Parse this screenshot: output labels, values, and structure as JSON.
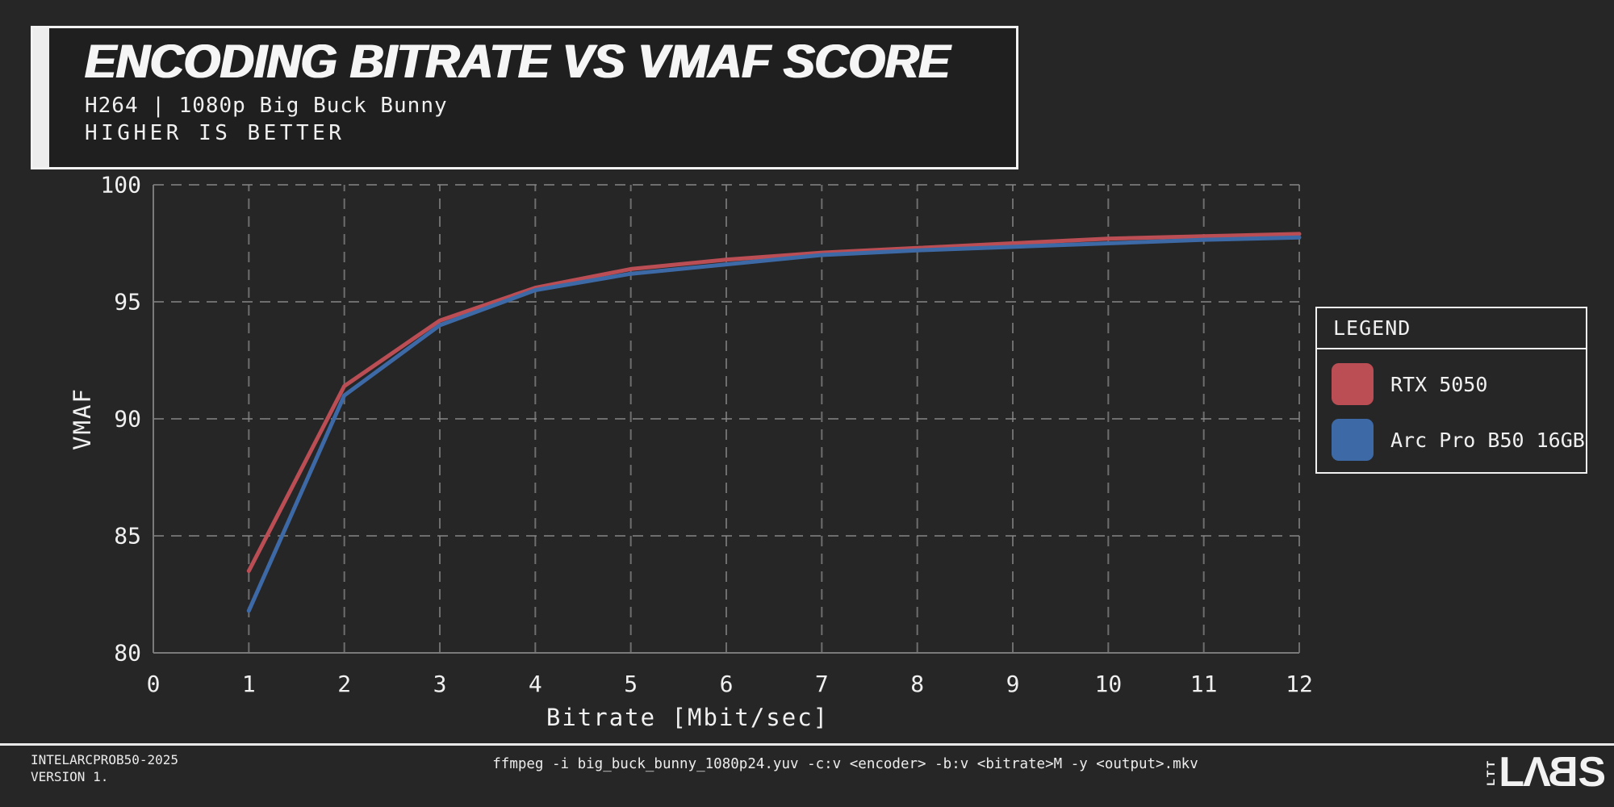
{
  "header": {
    "title": "ENCODING BITRATE VS VMAF SCORE",
    "subtitle": "H264 | 1080p Big Buck Bunny",
    "tagline": "HIGHER IS BETTER"
  },
  "chart_data": {
    "type": "line",
    "title": "Encoding Bitrate vs VMAF Score",
    "xlabel": "Bitrate [Mbit/sec]",
    "ylabel": "VMAF",
    "xlim": [
      0,
      12
    ],
    "ylim": [
      80,
      100
    ],
    "xticks": [
      0,
      1,
      2,
      3,
      4,
      5,
      6,
      7,
      8,
      9,
      10,
      11,
      12
    ],
    "yticks": [
      80,
      85,
      90,
      95,
      100
    ],
    "grid": "dashed",
    "legend_position": "right",
    "x": [
      1,
      2,
      3,
      4,
      5,
      6,
      7,
      8,
      9,
      10,
      11,
      12
    ],
    "series": [
      {
        "name": "RTX 5050",
        "color": "#bb4d54",
        "values": [
          83.5,
          91.4,
          94.2,
          95.6,
          96.4,
          96.8,
          97.1,
          97.3,
          97.5,
          97.7,
          97.8,
          97.9
        ]
      },
      {
        "name": "Arc Pro B50 16GB",
        "color": "#3d6aa6",
        "values": [
          81.8,
          91.0,
          94.0,
          95.5,
          96.2,
          96.6,
          97.0,
          97.2,
          97.35,
          97.5,
          97.65,
          97.75
        ]
      }
    ]
  },
  "legend": {
    "title": "LEGEND"
  },
  "footer": {
    "dataset_id": "INTELARCPROB50-2025",
    "version": "VERSION 1.",
    "command": "ffmpeg -i big_buck_bunny_1080p24.yuv -c:v <encoder> -b:v <bitrate>M -y <output>.mkv",
    "logo_vertical": "LTT",
    "logo_main": "LABS"
  },
  "colors": {
    "background": "#262626",
    "foreground": "#f0f0f0",
    "gridline": "#8a8a8a",
    "rtx_5050": "#bb4d54",
    "arc_pro_b50": "#3d6aa6"
  }
}
